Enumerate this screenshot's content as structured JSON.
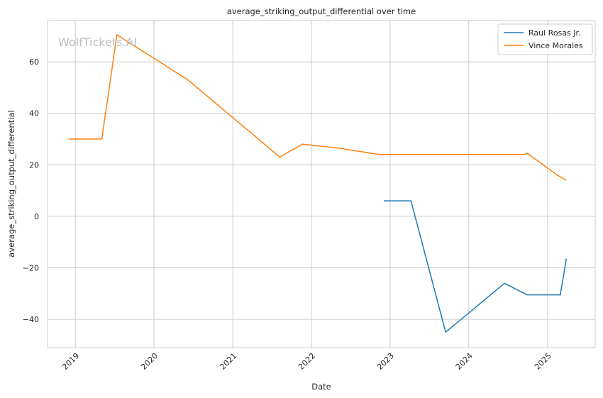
{
  "watermark": "WolfTickets.AI",
  "chart_data": {
    "type": "line",
    "title": "average_striking_output_differential over time",
    "xlabel": "Date",
    "ylabel": "average_striking_output_differential",
    "x_ticks": [
      "2019",
      "2020",
      "2021",
      "2022",
      "2023",
      "2024",
      "2025"
    ],
    "y_ticks": [
      -40,
      -20,
      0,
      20,
      40,
      60
    ],
    "xlim": [
      "2018-08-25",
      "2025-08-10"
    ],
    "ylim": [
      -51,
      76
    ],
    "grid": true,
    "legend_position": "top-right",
    "series": [
      {
        "name": "Raul Rosas Jr.",
        "color": "#1f77b4",
        "points": [
          [
            "2022-12-03",
            6
          ],
          [
            "2023-04-08",
            6
          ],
          [
            "2023-09-16",
            -45
          ],
          [
            "2024-06-15",
            -26
          ],
          [
            "2024-09-28",
            -30.5
          ],
          [
            "2025-03-01",
            -30.5
          ],
          [
            "2025-03-29",
            -16.5
          ]
        ]
      },
      {
        "name": "Vince Morales",
        "color": "#ff7f0e",
        "points": [
          [
            "2018-11-30",
            30
          ],
          [
            "2019-05-04",
            30
          ],
          [
            "2019-07-13",
            70.5
          ],
          [
            "2020-06-06",
            53
          ],
          [
            "2021-08-07",
            23
          ],
          [
            "2021-11-20",
            28
          ],
          [
            "2022-05-07",
            26.5
          ],
          [
            "2022-11-12",
            24
          ],
          [
            "2024-09-14",
            24
          ],
          [
            "2024-09-28",
            24.5
          ],
          [
            "2025-02-15",
            16
          ],
          [
            "2025-03-29",
            14
          ]
        ]
      }
    ]
  }
}
